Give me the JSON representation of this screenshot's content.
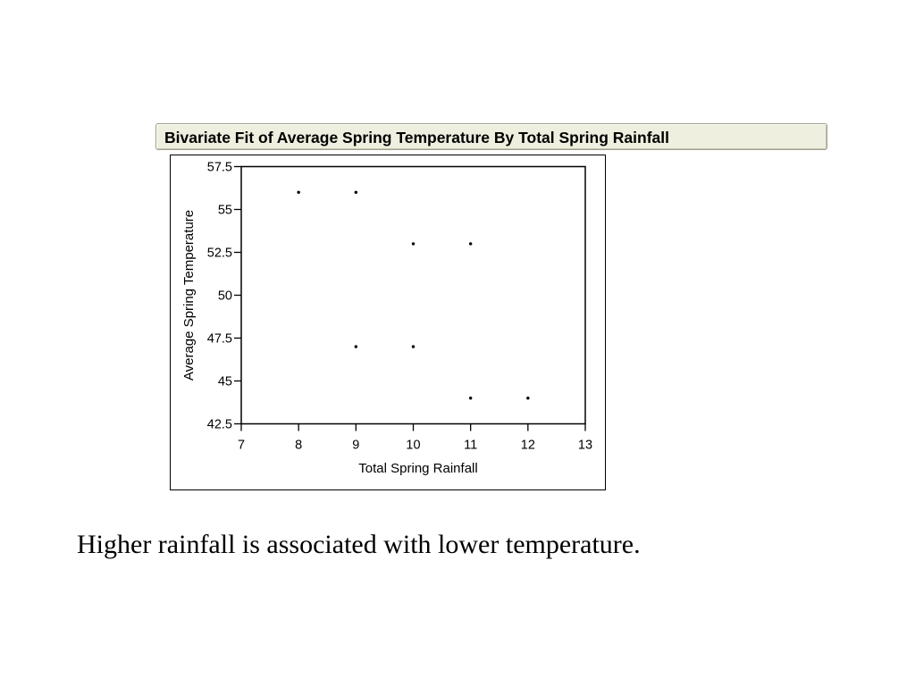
{
  "header": {
    "title": "Bivariate Fit of Average Spring Temperature By Total Spring Rainfall"
  },
  "caption": "Higher rainfall is associated with lower temperature.",
  "chart_data": {
    "type": "scatter",
    "title": "Bivariate Fit of Average Spring Temperature By Total Spring Rainfall",
    "xlabel": "Total Spring Rainfall",
    "ylabel": "Average Spring Temperature",
    "xlim": [
      7,
      13
    ],
    "ylim": [
      42.5,
      57.5
    ],
    "xticks": [
      7,
      8,
      9,
      10,
      11,
      12,
      13
    ],
    "xtick_labels": [
      "7",
      "8",
      "9",
      "10",
      "11",
      "12",
      "13"
    ],
    "yticks": [
      42.5,
      45,
      47.5,
      50,
      52.5,
      55,
      57.5
    ],
    "ytick_labels": [
      "42.5",
      "45",
      "47.5",
      "50",
      "52.5",
      "55",
      "57.5"
    ],
    "grid": false,
    "point_color": "#000000",
    "points": [
      {
        "x": 8,
        "y": 56
      },
      {
        "x": 9,
        "y": 56
      },
      {
        "x": 10,
        "y": 53
      },
      {
        "x": 11,
        "y": 53
      },
      {
        "x": 9,
        "y": 47
      },
      {
        "x": 10,
        "y": 47
      },
      {
        "x": 11,
        "y": 44
      },
      {
        "x": 12,
        "y": 44
      }
    ]
  }
}
